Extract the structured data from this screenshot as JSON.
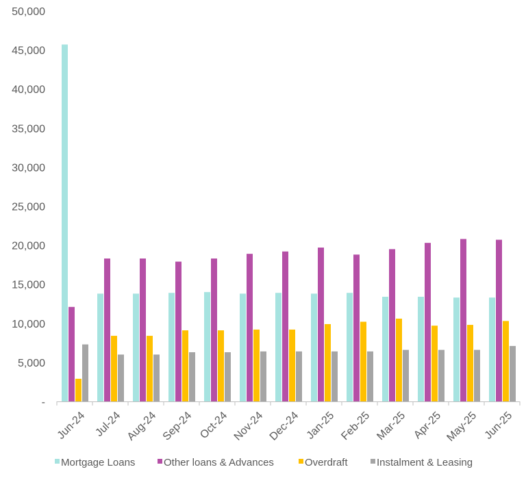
{
  "chart_data": {
    "type": "bar",
    "title": "",
    "xlabel": "",
    "ylabel": "",
    "ylim": [
      0,
      50000
    ],
    "yticks": [
      0,
      5000,
      10000,
      15000,
      20000,
      25000,
      30000,
      35000,
      40000,
      45000,
      50000
    ],
    "ytick_labels": [
      "-",
      "5,000",
      "10,000",
      "15,000",
      "20,000",
      "25,000",
      "30,000",
      "35,000",
      "40,000",
      "45,000",
      "50,000"
    ],
    "grid": false,
    "legend_position": "bottom",
    "categories": [
      "Jun-24",
      "Jul-24",
      "Aug-24",
      "Sep-24",
      "Oct-24",
      "Nov-24",
      "Dec-24",
      "Jan-25",
      "Feb-25",
      "Mar-25",
      "Apr-25",
      "May-25",
      "Jun-25"
    ],
    "series": [
      {
        "name": "Mortgage Loans",
        "color": "#A6E3E0",
        "values": [
          45700,
          13800,
          13800,
          13900,
          14000,
          13800,
          13900,
          13800,
          13900,
          13400,
          13400,
          13300,
          13300
        ]
      },
      {
        "name": "Other loans & Advances",
        "color": "#B54FA6",
        "values": [
          12100,
          18300,
          18300,
          17900,
          18300,
          18900,
          19200,
          19700,
          18800,
          19500,
          20300,
          20800,
          20700
        ]
      },
      {
        "name": "Overdraft",
        "color": "#FFC000",
        "values": [
          2900,
          8400,
          8400,
          9100,
          9100,
          9200,
          9200,
          9900,
          10200,
          10600,
          9700,
          9800,
          10300
        ]
      },
      {
        "name": "Instalment & Leasing",
        "color": "#A5A5A5",
        "values": [
          7300,
          6000,
          6000,
          6300,
          6300,
          6400,
          6400,
          6400,
          6400,
          6600,
          6600,
          6600,
          7100
        ]
      }
    ]
  }
}
